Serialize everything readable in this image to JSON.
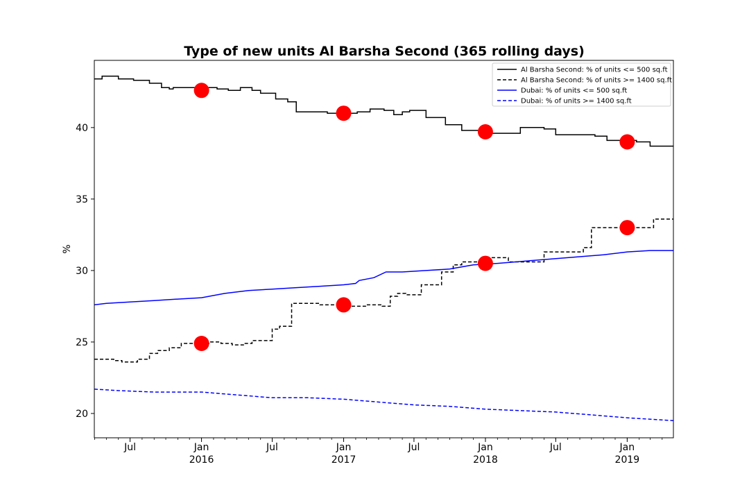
{
  "chart_data": {
    "type": "line",
    "title": "Type of new units Al Barsha Second (365 rolling days)",
    "xlabel": "",
    "ylabel": "%",
    "xlim": [
      "2015-03-31",
      "2019-04-30"
    ],
    "ylim": [
      18.3,
      44.7
    ],
    "y_ticks": [
      20,
      25,
      30,
      35,
      40
    ],
    "x_major_ticks": [
      {
        "date": "2015-07-01",
        "label": "Jul"
      },
      {
        "date": "2016-01-01",
        "label": "Jan",
        "year": "2016"
      },
      {
        "date": "2016-07-01",
        "label": "Jul"
      },
      {
        "date": "2017-01-01",
        "label": "Jan",
        "year": "2017"
      },
      {
        "date": "2017-07-01",
        "label": "Jul"
      },
      {
        "date": "2018-01-01",
        "label": "Jan",
        "year": "2018"
      },
      {
        "date": "2018-07-01",
        "label": "Jul"
      },
      {
        "date": "2019-01-01",
        "label": "Jan",
        "year": "2019"
      }
    ],
    "legend_position": "top-right",
    "series": [
      {
        "name": "Al Barsha Second: % of units <= 500 sq.ft",
        "color": "#000000",
        "dash": "solid",
        "step": true,
        "points": [
          [
            "2015-03-31",
            43.4
          ],
          [
            "2015-04-20",
            43.6
          ],
          [
            "2015-06-01",
            43.4
          ],
          [
            "2015-07-10",
            43.3
          ],
          [
            "2015-08-20",
            43.1
          ],
          [
            "2015-09-20",
            42.8
          ],
          [
            "2015-10-10",
            42.7
          ],
          [
            "2015-10-20",
            42.8
          ],
          [
            "2016-02-10",
            42.7
          ],
          [
            "2016-03-10",
            42.6
          ],
          [
            "2016-04-10",
            42.8
          ],
          [
            "2016-05-10",
            42.6
          ],
          [
            "2016-06-01",
            42.4
          ],
          [
            "2016-07-10",
            42.0
          ],
          [
            "2016-08-10",
            41.8
          ],
          [
            "2016-09-01",
            41.1
          ],
          [
            "2016-11-20",
            41.0
          ],
          [
            "2017-02-05",
            41.1
          ],
          [
            "2017-03-10",
            41.3
          ],
          [
            "2017-04-15",
            41.2
          ],
          [
            "2017-05-10",
            40.9
          ],
          [
            "2017-06-01",
            41.1
          ],
          [
            "2017-06-20",
            41.2
          ],
          [
            "2017-08-01",
            40.7
          ],
          [
            "2017-09-20",
            40.2
          ],
          [
            "2017-11-01",
            39.8
          ],
          [
            "2018-01-05",
            39.6
          ],
          [
            "2018-04-01",
            40.0
          ],
          [
            "2018-06-01",
            39.9
          ],
          [
            "2018-07-01",
            39.5
          ],
          [
            "2018-10-10",
            39.4
          ],
          [
            "2018-11-10",
            39.1
          ],
          [
            "2019-01-25",
            39.0
          ],
          [
            "2019-03-01",
            38.7
          ],
          [
            "2019-04-30",
            38.7
          ]
        ]
      },
      {
        "name": "Al Barsha Second: % of units >= 1400 sq.ft",
        "color": "#000000",
        "dash": "dashed",
        "step": true,
        "points": [
          [
            "2015-03-31",
            23.8
          ],
          [
            "2015-05-20",
            23.7
          ],
          [
            "2015-06-10",
            23.6
          ],
          [
            "2015-07-20",
            23.8
          ],
          [
            "2015-08-20",
            24.2
          ],
          [
            "2015-09-10",
            24.4
          ],
          [
            "2015-10-10",
            24.6
          ],
          [
            "2015-11-10",
            24.9
          ],
          [
            "2016-01-20",
            25.0
          ],
          [
            "2016-02-20",
            24.9
          ],
          [
            "2016-03-20",
            24.8
          ],
          [
            "2016-04-20",
            24.9
          ],
          [
            "2016-05-10",
            25.1
          ],
          [
            "2016-07-01",
            25.9
          ],
          [
            "2016-07-20",
            26.1
          ],
          [
            "2016-08-20",
            27.7
          ],
          [
            "2016-11-01",
            27.6
          ],
          [
            "2017-01-20",
            27.5
          ],
          [
            "2017-03-01",
            27.6
          ],
          [
            "2017-04-10",
            27.5
          ],
          [
            "2017-05-01",
            28.2
          ],
          [
            "2017-05-20",
            28.4
          ],
          [
            "2017-06-10",
            28.3
          ],
          [
            "2017-07-20",
            29.0
          ],
          [
            "2017-09-10",
            29.9
          ],
          [
            "2017-10-10",
            30.4
          ],
          [
            "2017-11-01",
            30.6
          ],
          [
            "2018-01-01",
            30.9
          ],
          [
            "2018-03-01",
            30.6
          ],
          [
            "2018-06-01",
            31.3
          ],
          [
            "2018-09-10",
            31.6
          ],
          [
            "2018-10-01",
            33.0
          ],
          [
            "2019-02-15",
            33.0
          ],
          [
            "2019-03-10",
            33.6
          ],
          [
            "2019-04-30",
            33.6
          ]
        ]
      },
      {
        "name": "Dubai: % of units <= 500 sq.ft",
        "color": "#0000ff",
        "dash": "solid",
        "step": false,
        "points": [
          [
            "2015-03-31",
            27.6
          ],
          [
            "2015-05-01",
            27.7
          ],
          [
            "2015-07-01",
            27.8
          ],
          [
            "2015-09-01",
            27.9
          ],
          [
            "2015-11-01",
            28.0
          ],
          [
            "2016-01-01",
            28.1
          ],
          [
            "2016-03-01",
            28.4
          ],
          [
            "2016-05-01",
            28.6
          ],
          [
            "2016-07-01",
            28.7
          ],
          [
            "2016-09-01",
            28.8
          ],
          [
            "2016-11-01",
            28.9
          ],
          [
            "2017-01-01",
            29.0
          ],
          [
            "2017-02-01",
            29.1
          ],
          [
            "2017-02-10",
            29.3
          ],
          [
            "2017-03-20",
            29.5
          ],
          [
            "2017-04-20",
            29.9
          ],
          [
            "2017-06-01",
            29.9
          ],
          [
            "2017-08-01",
            30.0
          ],
          [
            "2017-10-01",
            30.1
          ],
          [
            "2017-12-01",
            30.4
          ],
          [
            "2018-02-01",
            30.5
          ],
          [
            "2018-05-01",
            30.7
          ],
          [
            "2018-08-01",
            30.9
          ],
          [
            "2018-11-01",
            31.1
          ],
          [
            "2019-01-01",
            31.3
          ],
          [
            "2019-03-01",
            31.4
          ],
          [
            "2019-04-30",
            31.4
          ]
        ]
      },
      {
        "name": "Dubai: % of units >= 1400 sq.ft",
        "color": "#0000ff",
        "dash": "dashed",
        "step": false,
        "points": [
          [
            "2015-03-31",
            21.7
          ],
          [
            "2015-06-01",
            21.6
          ],
          [
            "2015-09-01",
            21.5
          ],
          [
            "2016-01-01",
            21.5
          ],
          [
            "2016-04-01",
            21.3
          ],
          [
            "2016-07-01",
            21.1
          ],
          [
            "2016-10-01",
            21.1
          ],
          [
            "2017-01-01",
            21.0
          ],
          [
            "2017-04-01",
            20.8
          ],
          [
            "2017-07-01",
            20.6
          ],
          [
            "2017-10-01",
            20.5
          ],
          [
            "2018-01-01",
            20.3
          ],
          [
            "2018-04-01",
            20.2
          ],
          [
            "2018-07-01",
            20.1
          ],
          [
            "2018-10-01",
            19.9
          ],
          [
            "2019-01-01",
            19.7
          ],
          [
            "2019-04-30",
            19.5
          ]
        ]
      }
    ],
    "markers": {
      "color": "#ff0000",
      "points": [
        [
          "2016-01-01",
          42.6
        ],
        [
          "2017-01-01",
          41.0
        ],
        [
          "2018-01-01",
          39.7
        ],
        [
          "2019-01-01",
          39.0
        ],
        [
          "2016-01-01",
          24.9
        ],
        [
          "2017-01-01",
          27.6
        ],
        [
          "2018-01-01",
          30.5
        ],
        [
          "2019-01-01",
          33.0
        ]
      ]
    }
  }
}
